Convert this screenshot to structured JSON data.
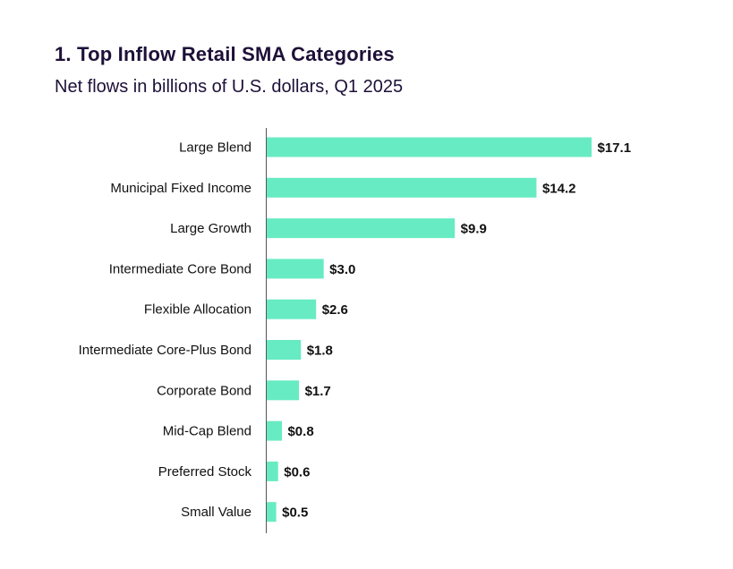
{
  "header": {
    "title": "1. Top Inflow Retail SMA Categories",
    "subtitle": "Net flows in billions of U.S. dollars, Q1 2025"
  },
  "colors": {
    "bar": "#67ebc3",
    "axis": "#555555",
    "text": "#1e1038"
  },
  "chart_data": {
    "type": "bar",
    "orientation": "horizontal",
    "title": "1. Top Inflow Retail SMA Categories",
    "subtitle": "Net flows in billions of U.S. dollars, Q1 2025",
    "xlabel": "",
    "ylabel": "",
    "categories": [
      "Large Blend",
      "Municipal Fixed Income",
      "Large Growth",
      "Intermediate Core Bond",
      "Flexible Allocation",
      "Intermediate Core-Plus Bond",
      "Corporate Bond",
      "Mid-Cap Blend",
      "Preferred Stock",
      "Small Value"
    ],
    "values": [
      17.1,
      14.2,
      9.9,
      3.0,
      2.6,
      1.8,
      1.7,
      0.8,
      0.6,
      0.5
    ],
    "labels": [
      "$17.1",
      "$14.2",
      "$9.9",
      "$3.0",
      "$2.6",
      "$1.8",
      "$1.7",
      "$0.8",
      "$0.6",
      "$0.5"
    ],
    "xlim": [
      0,
      17.1
    ],
    "grid": false,
    "legend": "none"
  }
}
